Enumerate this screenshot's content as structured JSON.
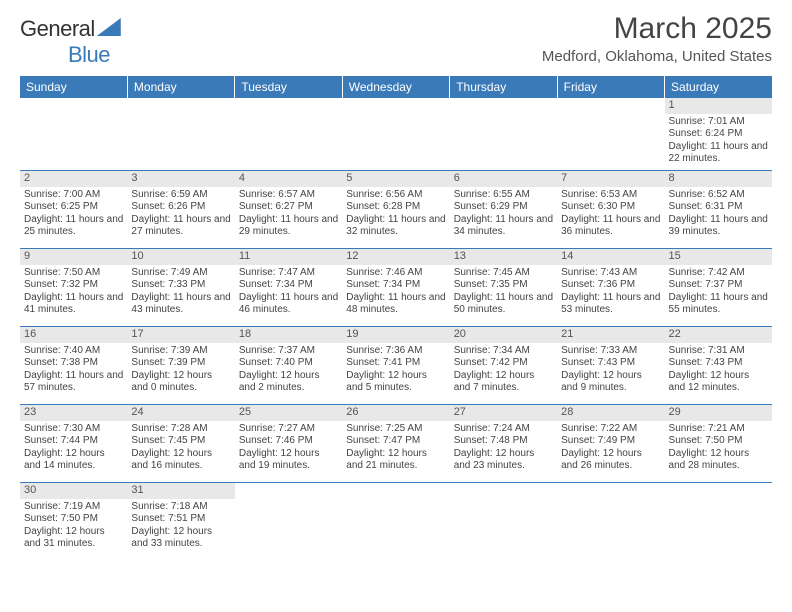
{
  "brand": {
    "word1": "General",
    "word2": "Blue"
  },
  "title": "March 2025",
  "location": "Medford, Oklahoma, United States",
  "colors": {
    "header_bg": "#3b7ab8",
    "header_fg": "#ffffff",
    "rule": "#3b7ab8",
    "daynum_bg": "#e8e8e8"
  },
  "week_header": [
    "Sunday",
    "Monday",
    "Tuesday",
    "Wednesday",
    "Thursday",
    "Friday",
    "Saturday"
  ],
  "weeks": [
    [
      null,
      null,
      null,
      null,
      null,
      null,
      {
        "d": "1",
        "sr": "Sunrise: 7:01 AM",
        "ss": "Sunset: 6:24 PM",
        "dl": "Daylight: 11 hours and 22 minutes."
      }
    ],
    [
      {
        "d": "2",
        "sr": "Sunrise: 7:00 AM",
        "ss": "Sunset: 6:25 PM",
        "dl": "Daylight: 11 hours and 25 minutes."
      },
      {
        "d": "3",
        "sr": "Sunrise: 6:59 AM",
        "ss": "Sunset: 6:26 PM",
        "dl": "Daylight: 11 hours and 27 minutes."
      },
      {
        "d": "4",
        "sr": "Sunrise: 6:57 AM",
        "ss": "Sunset: 6:27 PM",
        "dl": "Daylight: 11 hours and 29 minutes."
      },
      {
        "d": "5",
        "sr": "Sunrise: 6:56 AM",
        "ss": "Sunset: 6:28 PM",
        "dl": "Daylight: 11 hours and 32 minutes."
      },
      {
        "d": "6",
        "sr": "Sunrise: 6:55 AM",
        "ss": "Sunset: 6:29 PM",
        "dl": "Daylight: 11 hours and 34 minutes."
      },
      {
        "d": "7",
        "sr": "Sunrise: 6:53 AM",
        "ss": "Sunset: 6:30 PM",
        "dl": "Daylight: 11 hours and 36 minutes."
      },
      {
        "d": "8",
        "sr": "Sunrise: 6:52 AM",
        "ss": "Sunset: 6:31 PM",
        "dl": "Daylight: 11 hours and 39 minutes."
      }
    ],
    [
      {
        "d": "9",
        "sr": "Sunrise: 7:50 AM",
        "ss": "Sunset: 7:32 PM",
        "dl": "Daylight: 11 hours and 41 minutes."
      },
      {
        "d": "10",
        "sr": "Sunrise: 7:49 AM",
        "ss": "Sunset: 7:33 PM",
        "dl": "Daylight: 11 hours and 43 minutes."
      },
      {
        "d": "11",
        "sr": "Sunrise: 7:47 AM",
        "ss": "Sunset: 7:34 PM",
        "dl": "Daylight: 11 hours and 46 minutes."
      },
      {
        "d": "12",
        "sr": "Sunrise: 7:46 AM",
        "ss": "Sunset: 7:34 PM",
        "dl": "Daylight: 11 hours and 48 minutes."
      },
      {
        "d": "13",
        "sr": "Sunrise: 7:45 AM",
        "ss": "Sunset: 7:35 PM",
        "dl": "Daylight: 11 hours and 50 minutes."
      },
      {
        "d": "14",
        "sr": "Sunrise: 7:43 AM",
        "ss": "Sunset: 7:36 PM",
        "dl": "Daylight: 11 hours and 53 minutes."
      },
      {
        "d": "15",
        "sr": "Sunrise: 7:42 AM",
        "ss": "Sunset: 7:37 PM",
        "dl": "Daylight: 11 hours and 55 minutes."
      }
    ],
    [
      {
        "d": "16",
        "sr": "Sunrise: 7:40 AM",
        "ss": "Sunset: 7:38 PM",
        "dl": "Daylight: 11 hours and 57 minutes."
      },
      {
        "d": "17",
        "sr": "Sunrise: 7:39 AM",
        "ss": "Sunset: 7:39 PM",
        "dl": "Daylight: 12 hours and 0 minutes."
      },
      {
        "d": "18",
        "sr": "Sunrise: 7:37 AM",
        "ss": "Sunset: 7:40 PM",
        "dl": "Daylight: 12 hours and 2 minutes."
      },
      {
        "d": "19",
        "sr": "Sunrise: 7:36 AM",
        "ss": "Sunset: 7:41 PM",
        "dl": "Daylight: 12 hours and 5 minutes."
      },
      {
        "d": "20",
        "sr": "Sunrise: 7:34 AM",
        "ss": "Sunset: 7:42 PM",
        "dl": "Daylight: 12 hours and 7 minutes."
      },
      {
        "d": "21",
        "sr": "Sunrise: 7:33 AM",
        "ss": "Sunset: 7:43 PM",
        "dl": "Daylight: 12 hours and 9 minutes."
      },
      {
        "d": "22",
        "sr": "Sunrise: 7:31 AM",
        "ss": "Sunset: 7:43 PM",
        "dl": "Daylight: 12 hours and 12 minutes."
      }
    ],
    [
      {
        "d": "23",
        "sr": "Sunrise: 7:30 AM",
        "ss": "Sunset: 7:44 PM",
        "dl": "Daylight: 12 hours and 14 minutes."
      },
      {
        "d": "24",
        "sr": "Sunrise: 7:28 AM",
        "ss": "Sunset: 7:45 PM",
        "dl": "Daylight: 12 hours and 16 minutes."
      },
      {
        "d": "25",
        "sr": "Sunrise: 7:27 AM",
        "ss": "Sunset: 7:46 PM",
        "dl": "Daylight: 12 hours and 19 minutes."
      },
      {
        "d": "26",
        "sr": "Sunrise: 7:25 AM",
        "ss": "Sunset: 7:47 PM",
        "dl": "Daylight: 12 hours and 21 minutes."
      },
      {
        "d": "27",
        "sr": "Sunrise: 7:24 AM",
        "ss": "Sunset: 7:48 PM",
        "dl": "Daylight: 12 hours and 23 minutes."
      },
      {
        "d": "28",
        "sr": "Sunrise: 7:22 AM",
        "ss": "Sunset: 7:49 PM",
        "dl": "Daylight: 12 hours and 26 minutes."
      },
      {
        "d": "29",
        "sr": "Sunrise: 7:21 AM",
        "ss": "Sunset: 7:50 PM",
        "dl": "Daylight: 12 hours and 28 minutes."
      }
    ],
    [
      {
        "d": "30",
        "sr": "Sunrise: 7:19 AM",
        "ss": "Sunset: 7:50 PM",
        "dl": "Daylight: 12 hours and 31 minutes."
      },
      {
        "d": "31",
        "sr": "Sunrise: 7:18 AM",
        "ss": "Sunset: 7:51 PM",
        "dl": "Daylight: 12 hours and 33 minutes."
      },
      null,
      null,
      null,
      null,
      null
    ]
  ]
}
